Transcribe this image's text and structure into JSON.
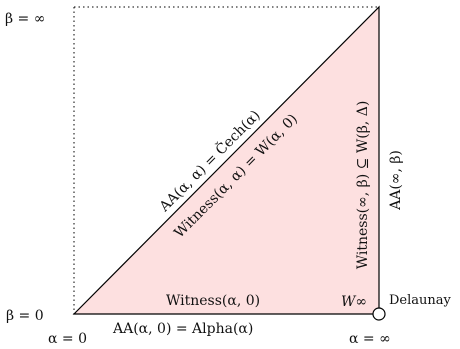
{
  "diagram": {
    "fill_color": "#fde0e0",
    "line_color": "#000000",
    "labels": {
      "beta_inf": "β = ∞",
      "beta_zero": "β = 0",
      "alpha_zero": "α = 0",
      "alpha_inf": "α = ∞",
      "bottom_edge": "AA(α, 0) = Alpha(α)",
      "witness_bottom": "Witness(α, 0)",
      "w_inf": "W∞",
      "delaunay": "Delaunay",
      "diagonal_upper": "AA(α, α) = Čech(α)",
      "diagonal_lower": "Witness(α, α) = W(α, 0)",
      "right_edge_inner": "Witness(∞, β) ⊆ W(β, Δ)",
      "right_edge_outer": "AA(∞, β)"
    }
  }
}
